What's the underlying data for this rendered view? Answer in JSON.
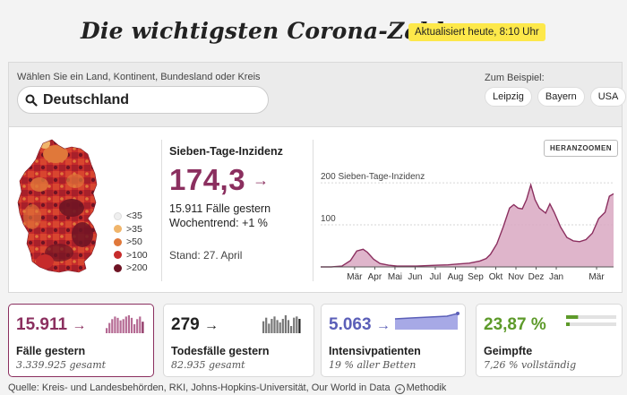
{
  "header": {
    "title": "Die wichtigsten Corona-Zahlen",
    "updated": "Aktualisiert heute, 8:10 Uhr"
  },
  "search": {
    "label": "Wählen Sie ein Land, Kontinent, Bundesland oder Kreis",
    "value": "Deutschland",
    "icon": "search-icon",
    "example_label": "Zum Beispiel:",
    "examples": [
      "Leipzig",
      "Bayern",
      "USA"
    ]
  },
  "map": {
    "legend": [
      {
        "label": "<35",
        "color": "#efefef"
      },
      {
        "label": ">35",
        "color": "#f0b56b"
      },
      {
        "label": ">50",
        "color": "#e0783a"
      },
      {
        "label": ">100",
        "color": "#c62b2b"
      },
      {
        "label": ">200",
        "color": "#6e1424"
      }
    ]
  },
  "incidence": {
    "label": "Sieben-Tage-Inzidenz",
    "value": "174,3",
    "cases_yesterday": "15.911 Fälle gestern",
    "trend": "Wochentrend: +1 %",
    "date": "Stand: 27. April"
  },
  "chart": {
    "zoom_label": "HERANZOOMEN",
    "accent": "#8b2f5f",
    "fill": "#d9a8c2"
  },
  "chart_data": {
    "type": "area",
    "ylabel": "Sieben-Tage-Inzidenz",
    "y_ticks": [
      100,
      200
    ],
    "ylim": [
      0,
      230
    ],
    "x_labels": [
      "Mär",
      "Apr",
      "Mai",
      "Jun",
      "Jul",
      "Aug",
      "Sep",
      "Okt",
      "Nov",
      "Dez",
      "Jan",
      "Mär"
    ],
    "x_label_positions": [
      1.6,
      2.55,
      3.5,
      4.45,
      5.4,
      6.35,
      7.3,
      8.25,
      9.2,
      10.15,
      11.1,
      13.0
    ],
    "series": [
      {
        "x": [
          0,
          0.5,
          1.0,
          1.4,
          1.7,
          2.0,
          2.2,
          2.5,
          2.8,
          3.2,
          3.6,
          4.0,
          4.5,
          5.0,
          5.5,
          6.0,
          6.5,
          7.0,
          7.5,
          7.8,
          8.0,
          8.3,
          8.6,
          8.9,
          9.1,
          9.3,
          9.5,
          9.7,
          9.9,
          10.1,
          10.3,
          10.6,
          10.8,
          11.0,
          11.3,
          11.6,
          11.9,
          12.2,
          12.5,
          12.8,
          13.1,
          13.4,
          13.6,
          13.8
        ],
        "y": [
          0,
          0,
          2,
          15,
          38,
          42,
          35,
          18,
          8,
          4,
          2,
          2,
          2,
          3,
          4,
          5,
          7,
          9,
          14,
          20,
          30,
          55,
          95,
          140,
          148,
          140,
          138,
          160,
          195,
          160,
          140,
          128,
          150,
          130,
          95,
          70,
          62,
          60,
          65,
          80,
          115,
          130,
          168,
          174
        ]
      }
    ]
  },
  "cards": [
    {
      "value": "15.911",
      "label": "Fälle gestern",
      "sub": "3.339.925 gesamt",
      "color": "#8b2f5f",
      "selected": true,
      "spark": [
        4,
        8,
        11,
        13,
        12,
        10,
        11,
        13,
        14,
        12,
        7,
        11,
        13,
        9
      ]
    },
    {
      "value": "279",
      "label": "Todesfälle gestern",
      "sub": "82.935 gesamt",
      "color": "#222222",
      "selected": false,
      "spark": [
        10,
        13,
        8,
        12,
        14,
        11,
        9,
        12,
        15,
        11,
        6,
        13,
        14,
        12
      ]
    },
    {
      "value": "5.063",
      "label": "Intensivpatienten",
      "sub": "19 % aller Betten",
      "color": "#5b5fb8",
      "selected": false
    },
    {
      "value": "23,87 %",
      "label": "Geimpfte",
      "sub": "7,26 % vollständig",
      "color": "#5d9a2a",
      "selected": false,
      "vaccinated_first": 23.87,
      "vaccinated_full": 7.26
    }
  ],
  "footer": {
    "source": "Quelle: Kreis- und Landesbehörden, RKI, Johns-Hopkins-Universität, Our World in Data",
    "method": "Methodik"
  }
}
